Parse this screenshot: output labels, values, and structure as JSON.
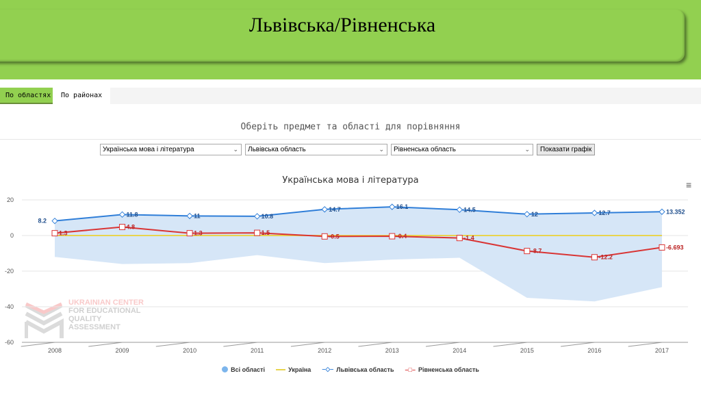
{
  "header": {
    "title": "Львівська/Рівненська"
  },
  "tabs": [
    {
      "label": "По областях",
      "active": true
    },
    {
      "label": "По районах",
      "active": false
    }
  ],
  "prompt": "Оберіть предмет та області для порівняння",
  "selects": {
    "subject": "Українська мова і література",
    "region1": "Львівська область",
    "region2": "Рівненська область"
  },
  "show_button": "Показати графік",
  "menu_icon": "hamburger-icon",
  "watermark": [
    "UKRAINIAN CENTER",
    "FOR EDUCATIONAL",
    "QUALITY",
    "ASSESSMENT"
  ],
  "colors": {
    "banner": "#92d050",
    "lviv": "#2f7ed8",
    "rivne": "#d93434",
    "ukraine": "#e8d44d",
    "range": "#d6e6f7"
  },
  "chart_data": {
    "type": "line",
    "title": "Українська мова і література",
    "categories": [
      "2008",
      "2009",
      "2010",
      "2011",
      "2012",
      "2013",
      "2014",
      "2015",
      "2016",
      "2017"
    ],
    "ylim": [
      -60,
      20
    ],
    "yticks": [
      20,
      0,
      -20,
      -40,
      -60
    ],
    "series": [
      {
        "name": "Всі області",
        "type": "arearange",
        "low": [
          -12,
          -16,
          -15.5,
          -11,
          -15.5,
          -13.5,
          -12.5,
          -35,
          -37,
          -29
        ],
        "high": [
          8.2,
          11.8,
          11,
          10.8,
          14.7,
          16.1,
          14.5,
          12,
          12.7,
          13.352
        ]
      },
      {
        "name": "Україна",
        "values": [
          0,
          0,
          0,
          0,
          0,
          0,
          0,
          0,
          0,
          0
        ]
      },
      {
        "name": "Львівська область",
        "values": [
          8.2,
          11.8,
          11,
          10.8,
          14.7,
          16.1,
          14.5,
          12,
          12.7,
          13.352
        ],
        "labels": [
          "8.2",
          "11.8",
          "11",
          "10.8",
          "14.7",
          "16.1",
          "14.5",
          "12",
          "12.7",
          "13.352"
        ]
      },
      {
        "name": "Рівненська область",
        "values": [
          1.3,
          4.8,
          1.3,
          1.5,
          -0.5,
          -0.4,
          -1.4,
          -8.7,
          -12.2,
          -6.693
        ],
        "labels": [
          "1.3",
          "4.8",
          "1.3",
          "1.5",
          "-0.5",
          "-0.4",
          "-1.4",
          "-8.7",
          "-12.2",
          "-6.693"
        ]
      }
    ],
    "legend": "bottom-center"
  }
}
